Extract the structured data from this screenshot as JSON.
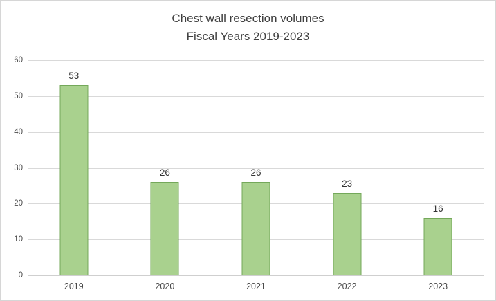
{
  "chart": {
    "title_line1": "Chest wall resection volumes",
    "title_line2": "Fiscal Years 2019-2023"
  },
  "chart_data": {
    "type": "bar",
    "title": "Chest wall resection volumes",
    "subtitle": "Fiscal Years 2019-2023",
    "categories": [
      "2019",
      "2020",
      "2021",
      "2022",
      "2023"
    ],
    "values": [
      53,
      26,
      26,
      23,
      16
    ],
    "data_labels": [
      "53",
      "26",
      "26",
      "23",
      "16"
    ],
    "xlabel": "",
    "ylabel": "",
    "ylim": [
      0,
      60
    ],
    "yticks": [
      0,
      10,
      20,
      30,
      40,
      50,
      60
    ],
    "grid": true,
    "legend": false,
    "colors": {
      "bar_fill": "#a9d18e",
      "bar_border": "#74a85a",
      "gridline": "#d9d9d9",
      "axis_line": "#cfcfcf",
      "title_text": "#3f3f3f",
      "tick_text": "#4a4a4a",
      "value_text": "#333333",
      "chart_border": "#d6d6d6",
      "background": "#ffffff"
    }
  }
}
